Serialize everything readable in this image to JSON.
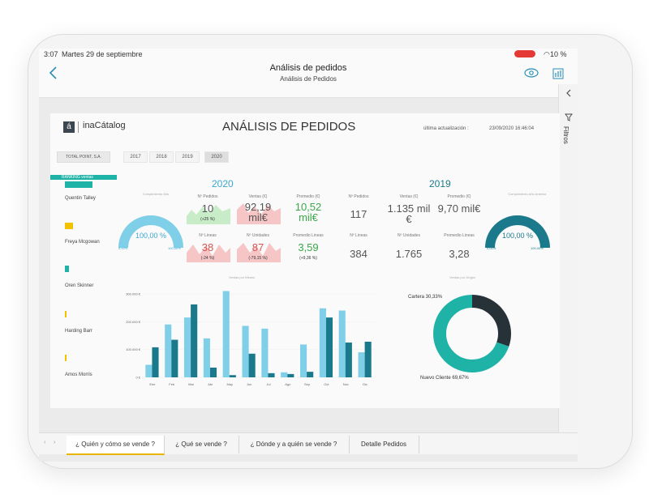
{
  "status": {
    "time": "3:07",
    "date": "Martes 29 de septiembre",
    "battery": "10 %"
  },
  "nav": {
    "title": "Análisis de pedidos",
    "subtitle": "Análisis de Pedidos"
  },
  "filters": {
    "label": "Filtros"
  },
  "brand": {
    "logo_letter": "á",
    "logo_text": "inaCátalog"
  },
  "report": {
    "title": "ANÁLISIS DE PEDIDOS",
    "update_label": "última actualización :",
    "update_value": "23/09/2020 16:46:04",
    "company": "TOTAL POINT, S.A.",
    "years": [
      "2017",
      "2018",
      "2019",
      "2020"
    ],
    "selected_year": "2020"
  },
  "ranking": {
    "title": "RANKING ventas",
    "people": [
      {
        "name": "Quentin Talley",
        "color": "#1fb3a8"
      },
      {
        "name": "Freya Mcgowan",
        "color": "#f2c200"
      },
      {
        "name": "Oren Skinner",
        "color": "#1fb3a8"
      },
      {
        "name": "Harding Barr",
        "color": "#f2c200"
      },
      {
        "name": "Amos Morris",
        "color": "#f2c200"
      }
    ]
  },
  "y2020": {
    "year": "2020",
    "gauge_title": "Cumplimiento Año",
    "gauge_value": "100,00 %",
    "gauge_min": "0,00%",
    "gauge_max": "100,00%",
    "gauge_fill": 1.0,
    "kpis_top": [
      {
        "header": "Nº Pedidos",
        "value": "10",
        "delta": "(+25 %)",
        "trend": "up"
      },
      {
        "header": "Ventas (€)",
        "value": "92,19 mil€",
        "delta": "",
        "trend": "down"
      },
      {
        "header": "Promedio (€)",
        "value": "10,52 mil€",
        "delta": "",
        "trend": "up"
      }
    ],
    "kpis_bottom": [
      {
        "header": "Nº Lineas",
        "value": "38",
        "delta": "(-24 %)",
        "trend": "down"
      },
      {
        "header": "Nº Unidades",
        "value": "87",
        "delta": "(-79,15 %)",
        "trend": "down"
      },
      {
        "header": "Promedio Lineas",
        "value": "3,59",
        "delta": "(+9,36 %)",
        "trend": "up"
      }
    ]
  },
  "y2019": {
    "year": "2019",
    "gauge_title": "Cumplimiento Año Anterior",
    "gauge_value": "100,00 %",
    "gauge_min": "0,00%",
    "gauge_max": "100,00%",
    "gauge_fill": 1.0,
    "kpis_top": [
      {
        "header": "Nº Pedidos",
        "value": "117"
      },
      {
        "header": "Ventas (€)",
        "value": "1.135 mil €"
      },
      {
        "header": "Promedio (€)",
        "value": "9,70 mil€"
      }
    ],
    "kpis_bottom": [
      {
        "header": "Nº Lineas",
        "value": "384"
      },
      {
        "header": "Nº Unidades",
        "value": "1.765"
      },
      {
        "header": "Promedio Lineas",
        "value": "3,28"
      }
    ]
  },
  "colors": {
    "accent": "#1fb3a8",
    "bar_current": "#7fcfe8",
    "bar_previous": "#1a7a8c",
    "gauge_2020": "#7fcfe8",
    "gauge_2019": "#1a7a8c",
    "positive": "#3aa84a",
    "negative": "#d9534f",
    "donut_cartera": "#263238",
    "donut_nuevo": "#1fb3a8"
  },
  "chart_data": [
    {
      "type": "bar",
      "title": "Ventas por Meses",
      "categories": [
        "Ene",
        "Feb",
        "Mar",
        "Abr",
        "May",
        "Jun",
        "Jul",
        "Ago",
        "Sep",
        "Oct",
        "Nov",
        "Dic"
      ],
      "y_ticks": [
        "0 €",
        "100.000 €",
        "200.000 €",
        "300.000 €"
      ],
      "ylim": [
        0,
        320000
      ],
      "series": [
        {
          "name": "Actual",
          "values": [
            45000,
            190000,
            215000,
            140000,
            310000,
            185000,
            175000,
            18000,
            118000,
            248000,
            240000,
            90000
          ]
        },
        {
          "name": "Anterior",
          "values": [
            108000,
            135000,
            262000,
            35000,
            8000,
            85000,
            15000,
            12000,
            20000,
            215000,
            125000,
            128000
          ]
        }
      ]
    },
    {
      "type": "pie",
      "title": "Ventas por Origen",
      "labels": [
        "Cartera",
        "Nuevo Cliente"
      ],
      "values": [
        30.33,
        69.67
      ],
      "value_labels": [
        "Cartera 30,33%",
        "Nuevo Cliente 69,67%"
      ]
    }
  ],
  "tabs": [
    {
      "label": "¿ Quién y cómo se vende ?",
      "active": true
    },
    {
      "label": "¿ Qué se vende ?",
      "active": false
    },
    {
      "label": "¿ Dónde y a quién se vende ?",
      "active": false
    },
    {
      "label": "Detalle Pedidos",
      "active": false
    }
  ]
}
